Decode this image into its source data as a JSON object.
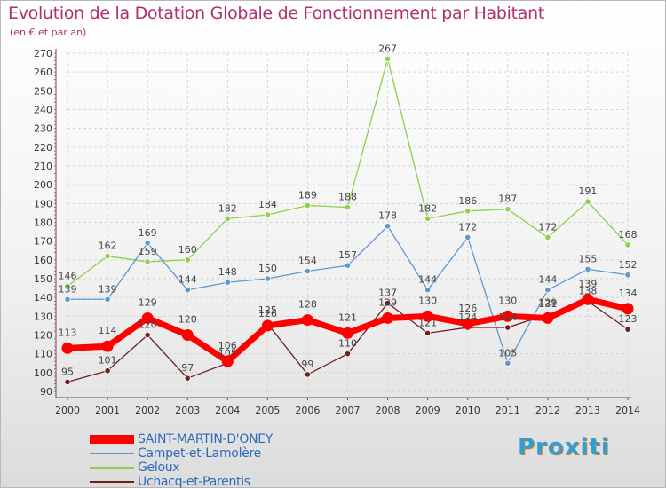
{
  "title": "Evolution de la Dotation Globale de Fonctionnement par Habitant",
  "subtitle": "(en € et par an)",
  "logo_text": "Proxiti",
  "chart_data": {
    "type": "line",
    "title": "Evolution de la Dotation Globale de Fonctionnement par Habitant",
    "subtitle": "(en € et par an)",
    "x": [
      2000,
      2001,
      2002,
      2003,
      2004,
      2005,
      2006,
      2007,
      2008,
      2009,
      2010,
      2011,
      2012,
      2013,
      2014
    ],
    "ylim": [
      90,
      270
    ],
    "yticks": [
      90,
      100,
      110,
      120,
      130,
      140,
      150,
      160,
      170,
      180,
      190,
      200,
      210,
      220,
      230,
      240,
      250,
      260,
      270
    ],
    "grid": true,
    "legend_position": "bottom-left",
    "series": [
      {
        "name": "Geloux",
        "color": "#8ed04a",
        "values": [
          146,
          162,
          159,
          160,
          182,
          184,
          189,
          188,
          267,
          182,
          186,
          187,
          172,
          191,
          168
        ]
      },
      {
        "name": "Campet-et-Lamolère",
        "color": "#5f97d0",
        "values": [
          139,
          139,
          169,
          144,
          148,
          150,
          154,
          157,
          178,
          144,
          172,
          105,
          144,
          155,
          152
        ]
      },
      {
        "name": "Uchacq-et-Parentis",
        "color": "#6b1f23",
        "values": [
          95,
          101,
          120,
          97,
          105,
          126,
          99,
          110,
          137,
          121,
          124,
          124,
          131,
          138,
          123
        ]
      },
      {
        "name": "SAINT-MARTIN-D'ONEY",
        "color": "#ff0000",
        "values": [
          113,
          114,
          129,
          120,
          106,
          125,
          128,
          121,
          129,
          130,
          126,
          130,
          129,
          139,
          134
        ]
      }
    ]
  }
}
